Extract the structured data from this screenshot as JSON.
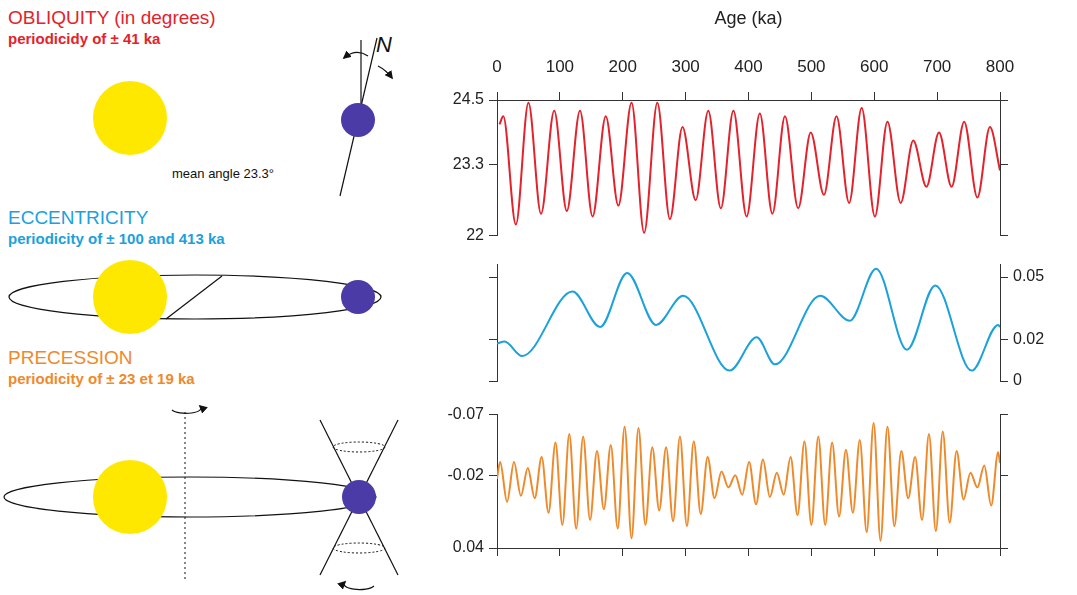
{
  "chart_data": [
    {
      "type": "line",
      "title": "OBLIQUITY (in degrees)",
      "subtitle": "periodicidy of ± 41 ka",
      "annotations": [
        "mean angle 23.3°",
        "N"
      ],
      "x_label": "Age (ka)",
      "xlim": [
        0,
        800
      ],
      "xticks": [
        0,
        100,
        200,
        300,
        400,
        500,
        600,
        700,
        800
      ],
      "ylim": [
        22,
        24.5
      ],
      "yticks": [
        22,
        23.3,
        24.5
      ],
      "grid": false,
      "series": [
        {
          "color": "#e4222b",
          "x": [
            4,
            10,
            30,
            50,
            70,
            91,
            111,
            132,
            152,
            173,
            193,
            214,
            234,
            255,
            275,
            295,
            316,
            336,
            356,
            376,
            397,
            418,
            438,
            458,
            479,
            499,
            520,
            540,
            560,
            580,
            601,
            621,
            642,
            662,
            683,
            703,
            723,
            743,
            764,
            784,
            800
          ],
          "values": [
            24.05,
            24.2,
            22.2,
            24.45,
            22.4,
            24.3,
            22.45,
            24.3,
            22.35,
            24.2,
            22.55,
            24.45,
            22.05,
            24.45,
            22.3,
            24,
            22.65,
            24.3,
            22.5,
            24.3,
            22.35,
            24.25,
            22.4,
            24.2,
            22.5,
            23.9,
            22.75,
            24.2,
            22.6,
            24.35,
            22.35,
            24.1,
            22.6,
            23.75,
            22.9,
            23.9,
            22.9,
            24.1,
            22.7,
            24,
            23.2
          ]
        }
      ]
    },
    {
      "type": "line",
      "title": "ECCENTRICITY",
      "subtitle": "periodicity of ± 100 and 413 ka",
      "xlim": [
        0,
        800
      ],
      "y2lim": [
        0,
        0.056
      ],
      "y2ticks": [
        0,
        0.02,
        0.05
      ],
      "tick_labels": "y",
      "grid": false,
      "series": [
        {
          "color": "#1ba1db",
          "axis": "y2",
          "x": [
            0,
            12,
            40,
            120,
            164,
            207,
            253,
            296,
            370,
            413,
            442,
            514,
            561,
            603,
            652,
            697,
            755,
            797,
            800
          ],
          "values": [
            0.018,
            0.019,
            0.012,
            0.043,
            0.026,
            0.052,
            0.027,
            0.041,
            0.005,
            0.021,
            0.008,
            0.041,
            0.029,
            0.054,
            0.015,
            0.046,
            0.005,
            0.027,
            0.026
          ]
        }
      ]
    },
    {
      "type": "line",
      "title": "PRECESSION",
      "subtitle": "periodicity of ± 23 et 19 ka",
      "xlim": [
        0,
        800
      ],
      "xticks": [
        0,
        100,
        200,
        300,
        400,
        500,
        600,
        700,
        800
      ],
      "ylim": [
        0.04,
        -0.07
      ],
      "yticks": [
        -0.07,
        -0.02,
        0.04
      ],
      "tick_labels": "y",
      "grid": false,
      "series": [
        {
          "color": "#ee8a2b",
          "x": [
            0,
            5,
            16,
            27,
            38,
            49,
            60,
            71,
            82,
            93,
            104,
            115,
            126,
            137,
            148,
            159,
            170,
            181,
            192,
            203,
            214,
            225,
            236,
            247,
            258,
            269,
            280,
            291,
            302,
            313,
            324,
            335,
            346,
            357,
            368,
            379,
            390,
            401,
            412,
            423,
            434,
            445,
            456,
            467,
            478,
            489,
            500,
            511,
            522,
            533,
            544,
            555,
            566,
            577,
            588,
            599,
            610,
            621,
            632,
            643,
            654,
            665,
            676,
            687,
            698,
            709,
            720,
            731,
            742,
            753,
            764,
            775,
            786,
            797,
            800
          ],
          "values": [
            -0.017,
            -0.031,
            0.002,
            -0.031,
            -0.003,
            -0.026,
            -0.001,
            -0.035,
            0.011,
            -0.047,
            0.021,
            -0.054,
            0.024,
            -0.052,
            0.017,
            -0.04,
            0.008,
            -0.045,
            0.024,
            -0.06,
            0.032,
            -0.059,
            0.021,
            -0.043,
            0.009,
            -0.043,
            0.018,
            -0.052,
            0.022,
            -0.048,
            0.012,
            -0.035,
            -0.001,
            -0.023,
            -0.01,
            -0.02,
            -0.004,
            -0.031,
            0.004,
            -0.033,
            -0.002,
            -0.022,
            -0.004,
            -0.035,
            0.013,
            -0.048,
            0.021,
            -0.052,
            0.021,
            -0.047,
            0.014,
            -0.041,
            0.011,
            -0.049,
            0.027,
            -0.063,
            0.034,
            -0.06,
            0.022,
            -0.04,
            -0.001,
            -0.035,
            0.017,
            -0.054,
            0.026,
            -0.056,
            0.019,
            -0.04,
            0,
            -0.022,
            -0.01,
            -0.028,
            0.005,
            -0.039,
            -0.03
          ]
        }
      ]
    }
  ]
}
